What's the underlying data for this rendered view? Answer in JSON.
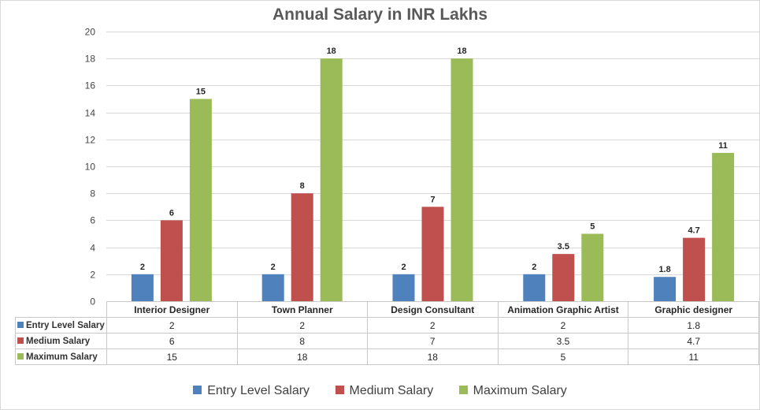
{
  "chart_data": {
    "type": "bar",
    "title": "Annual Salary in INR Lakhs",
    "categories": [
      "Interior Designer",
      "Town Planner",
      "Design Consultant",
      "Animation Graphic Artist",
      "Graphic designer"
    ],
    "series": [
      {
        "name": "Entry Level Salary",
        "values": [
          2,
          2,
          2,
          2,
          1.8
        ],
        "labels": [
          "2",
          "2",
          "2",
          "2",
          "1.8"
        ],
        "color": "#4f81bd"
      },
      {
        "name": "Medium Salary",
        "values": [
          6,
          8,
          7,
          3.5,
          4.7
        ],
        "labels": [
          "6",
          "8",
          "7",
          "3.5",
          "4.7"
        ],
        "color": "#c0504d"
      },
      {
        "name": "Maximum Salary",
        "values": [
          15,
          18,
          18,
          5,
          11
        ],
        "labels": [
          "15",
          "18",
          "18",
          "5",
          "11"
        ],
        "color": "#9bbb59"
      }
    ],
    "ylim": [
      0,
      20
    ],
    "yticks": [
      "0",
      "2",
      "4",
      "6",
      "8",
      "10",
      "12",
      "14",
      "16",
      "18",
      "20"
    ],
    "gridlines": true,
    "data_table": true,
    "legend_position": "bottom"
  }
}
